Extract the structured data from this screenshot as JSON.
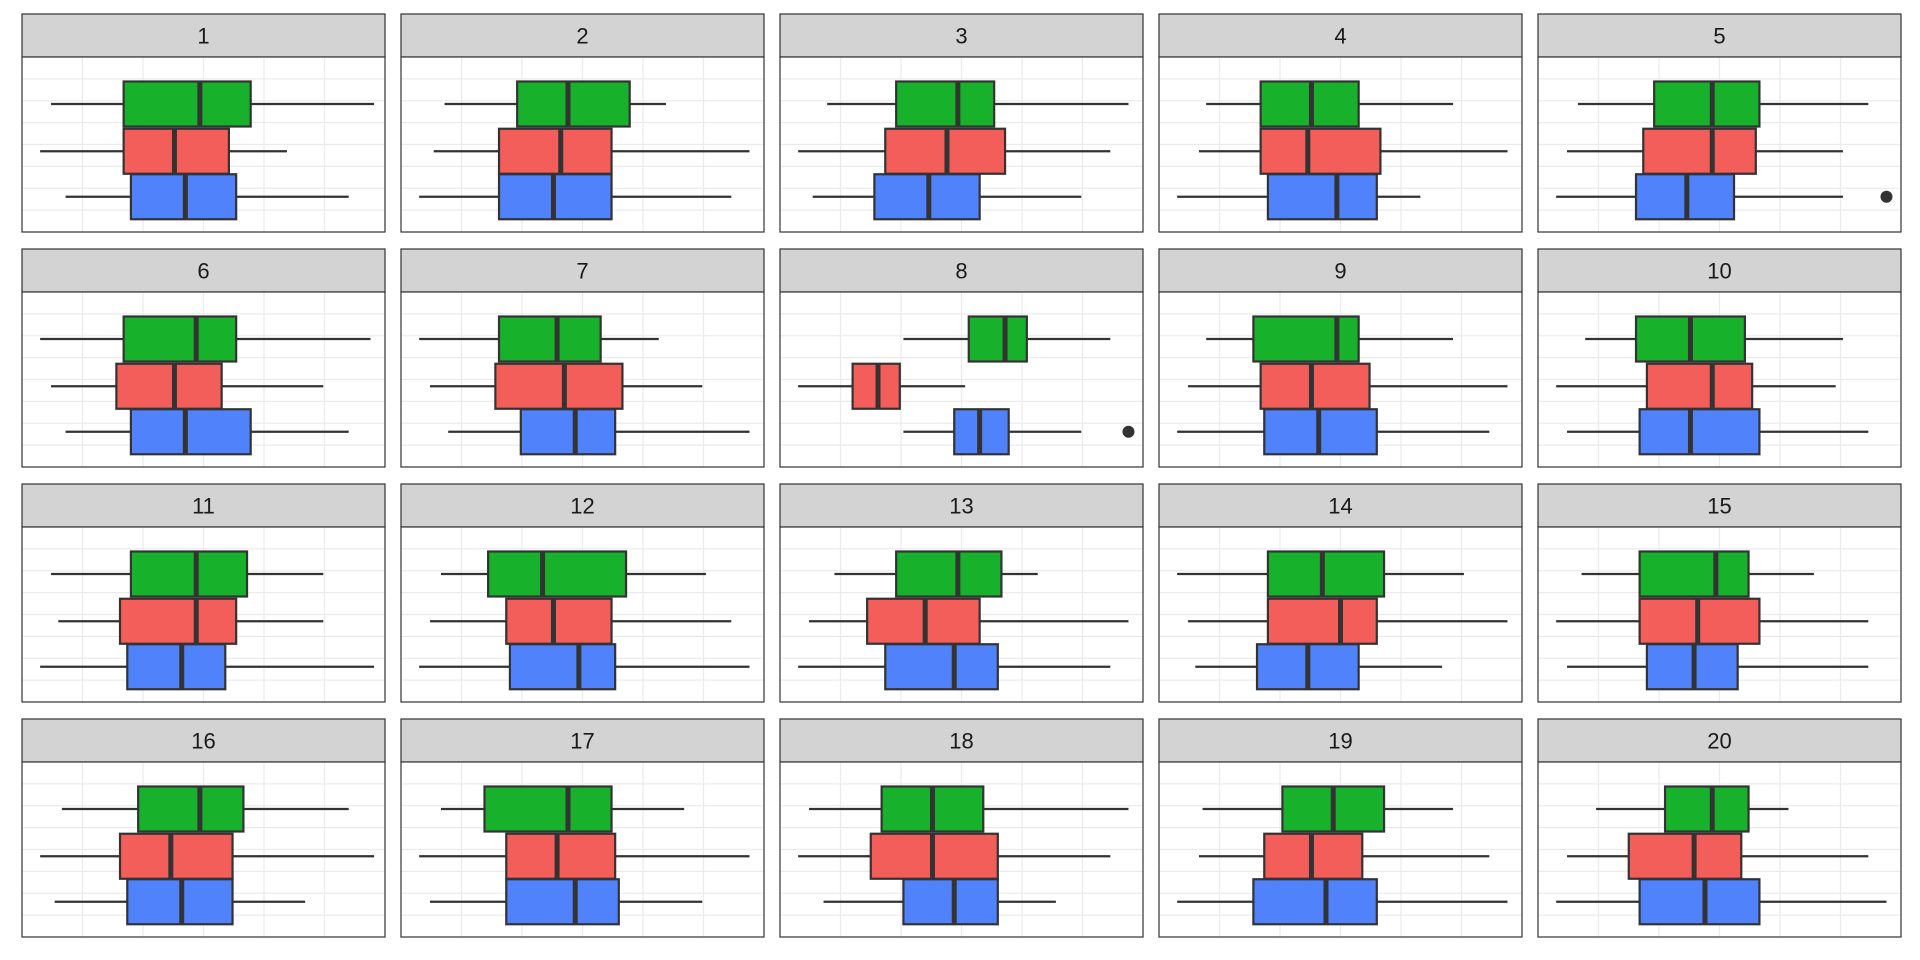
{
  "chart_data": {
    "type": "boxplot",
    "facet_layout": {
      "rows": 4,
      "cols": 5
    },
    "x_range": [
      0,
      100
    ],
    "grid": true,
    "legend": "none",
    "series_colors": {
      "top": "#17b12b",
      "middle": "#f35e5a",
      "bottom": "#5083fb"
    },
    "panels": [
      {
        "label": "1",
        "boxes": [
          {
            "group": "top",
            "whisker_low": 8,
            "q1": 28,
            "median": 49,
            "q3": 63,
            "whisker_high": 97,
            "outliers": []
          },
          {
            "group": "middle",
            "whisker_low": 5,
            "q1": 28,
            "median": 42,
            "q3": 57,
            "whisker_high": 73,
            "outliers": []
          },
          {
            "group": "bottom",
            "whisker_low": 12,
            "q1": 30,
            "median": 45,
            "q3": 59,
            "whisker_high": 90,
            "outliers": []
          }
        ]
      },
      {
        "label": "2",
        "boxes": [
          {
            "group": "top",
            "whisker_low": 12,
            "q1": 32,
            "median": 46,
            "q3": 63,
            "whisker_high": 73,
            "outliers": []
          },
          {
            "group": "middle",
            "whisker_low": 9,
            "q1": 27,
            "median": 44,
            "q3": 58,
            "whisker_high": 96,
            "outliers": []
          },
          {
            "group": "bottom",
            "whisker_low": 5,
            "q1": 27,
            "median": 42,
            "q3": 58,
            "whisker_high": 91,
            "outliers": []
          }
        ]
      },
      {
        "label": "3",
        "boxes": [
          {
            "group": "top",
            "whisker_low": 13,
            "q1": 32,
            "median": 49,
            "q3": 59,
            "whisker_high": 96,
            "outliers": []
          },
          {
            "group": "middle",
            "whisker_low": 5,
            "q1": 29,
            "median": 46,
            "q3": 62,
            "whisker_high": 91,
            "outliers": []
          },
          {
            "group": "bottom",
            "whisker_low": 9,
            "q1": 26,
            "median": 41,
            "q3": 55,
            "whisker_high": 83,
            "outliers": []
          }
        ]
      },
      {
        "label": "4",
        "boxes": [
          {
            "group": "top",
            "whisker_low": 13,
            "q1": 28,
            "median": 42,
            "q3": 55,
            "whisker_high": 81,
            "outliers": []
          },
          {
            "group": "middle",
            "whisker_low": 11,
            "q1": 28,
            "median": 41,
            "q3": 61,
            "whisker_high": 96,
            "outliers": []
          },
          {
            "group": "bottom",
            "whisker_low": 5,
            "q1": 30,
            "median": 49,
            "q3": 60,
            "whisker_high": 72,
            "outliers": []
          }
        ]
      },
      {
        "label": "5",
        "boxes": [
          {
            "group": "top",
            "whisker_low": 11,
            "q1": 32,
            "median": 48,
            "q3": 61,
            "whisker_high": 91,
            "outliers": []
          },
          {
            "group": "middle",
            "whisker_low": 8,
            "q1": 29,
            "median": 48,
            "q3": 60,
            "whisker_high": 84,
            "outliers": []
          },
          {
            "group": "bottom",
            "whisker_low": 5,
            "q1": 27,
            "median": 41,
            "q3": 54,
            "whisker_high": 84,
            "outliers": [
              96
            ]
          }
        ]
      },
      {
        "label": "6",
        "boxes": [
          {
            "group": "top",
            "whisker_low": 5,
            "q1": 28,
            "median": 48,
            "q3": 59,
            "whisker_high": 96,
            "outliers": []
          },
          {
            "group": "middle",
            "whisker_low": 8,
            "q1": 26,
            "median": 42,
            "q3": 55,
            "whisker_high": 83,
            "outliers": []
          },
          {
            "group": "bottom",
            "whisker_low": 12,
            "q1": 30,
            "median": 45,
            "q3": 63,
            "whisker_high": 90,
            "outliers": []
          }
        ]
      },
      {
        "label": "7",
        "boxes": [
          {
            "group": "top",
            "whisker_low": 5,
            "q1": 27,
            "median": 43,
            "q3": 55,
            "whisker_high": 71,
            "outliers": []
          },
          {
            "group": "middle",
            "whisker_low": 8,
            "q1": 26,
            "median": 45,
            "q3": 61,
            "whisker_high": 83,
            "outliers": []
          },
          {
            "group": "bottom",
            "whisker_low": 13,
            "q1": 33,
            "median": 48,
            "q3": 59,
            "whisker_high": 96,
            "outliers": []
          }
        ]
      },
      {
        "label": "8",
        "boxes": [
          {
            "group": "top",
            "whisker_low": 34,
            "q1": 52,
            "median": 62,
            "q3": 68,
            "whisker_high": 91,
            "outliers": []
          },
          {
            "group": "middle",
            "whisker_low": 5,
            "q1": 20,
            "median": 27,
            "q3": 33,
            "whisker_high": 51,
            "outliers": []
          },
          {
            "group": "bottom",
            "whisker_low": 34,
            "q1": 48,
            "median": 55,
            "q3": 63,
            "whisker_high": 83,
            "outliers": [
              96
            ]
          }
        ]
      },
      {
        "label": "9",
        "boxes": [
          {
            "group": "top",
            "whisker_low": 13,
            "q1": 26,
            "median": 49,
            "q3": 55,
            "whisker_high": 81,
            "outliers": []
          },
          {
            "group": "middle",
            "whisker_low": 8,
            "q1": 28,
            "median": 42,
            "q3": 58,
            "whisker_high": 96,
            "outliers": []
          },
          {
            "group": "bottom",
            "whisker_low": 5,
            "q1": 29,
            "median": 44,
            "q3": 60,
            "whisker_high": 91,
            "outliers": []
          }
        ]
      },
      {
        "label": "10",
        "boxes": [
          {
            "group": "top",
            "whisker_low": 13,
            "q1": 27,
            "median": 42,
            "q3": 57,
            "whisker_high": 84,
            "outliers": []
          },
          {
            "group": "middle",
            "whisker_low": 5,
            "q1": 30,
            "median": 48,
            "q3": 59,
            "whisker_high": 82,
            "outliers": []
          },
          {
            "group": "bottom",
            "whisker_low": 8,
            "q1": 28,
            "median": 42,
            "q3": 61,
            "whisker_high": 91,
            "outliers": []
          }
        ]
      },
      {
        "label": "11",
        "boxes": [
          {
            "group": "top",
            "whisker_low": 8,
            "q1": 30,
            "median": 48,
            "q3": 62,
            "whisker_high": 83,
            "outliers": []
          },
          {
            "group": "middle",
            "whisker_low": 10,
            "q1": 27,
            "median": 48,
            "q3": 59,
            "whisker_high": 83,
            "outliers": []
          },
          {
            "group": "bottom",
            "whisker_low": 5,
            "q1": 29,
            "median": 44,
            "q3": 56,
            "whisker_high": 97,
            "outliers": []
          }
        ]
      },
      {
        "label": "12",
        "boxes": [
          {
            "group": "top",
            "whisker_low": 11,
            "q1": 24,
            "median": 39,
            "q3": 62,
            "whisker_high": 84,
            "outliers": []
          },
          {
            "group": "middle",
            "whisker_low": 8,
            "q1": 29,
            "median": 42,
            "q3": 58,
            "whisker_high": 91,
            "outliers": []
          },
          {
            "group": "bottom",
            "whisker_low": 5,
            "q1": 30,
            "median": 49,
            "q3": 59,
            "whisker_high": 96,
            "outliers": []
          }
        ]
      },
      {
        "label": "13",
        "boxes": [
          {
            "group": "top",
            "whisker_low": 15,
            "q1": 32,
            "median": 49,
            "q3": 61,
            "whisker_high": 71,
            "outliers": []
          },
          {
            "group": "middle",
            "whisker_low": 8,
            "q1": 24,
            "median": 40,
            "q3": 55,
            "whisker_high": 96,
            "outliers": []
          },
          {
            "group": "bottom",
            "whisker_low": 5,
            "q1": 29,
            "median": 48,
            "q3": 60,
            "whisker_high": 91,
            "outliers": []
          }
        ]
      },
      {
        "label": "14",
        "boxes": [
          {
            "group": "top",
            "whisker_low": 5,
            "q1": 30,
            "median": 45,
            "q3": 62,
            "whisker_high": 84,
            "outliers": []
          },
          {
            "group": "middle",
            "whisker_low": 8,
            "q1": 30,
            "median": 50,
            "q3": 60,
            "whisker_high": 96,
            "outliers": []
          },
          {
            "group": "bottom",
            "whisker_low": 10,
            "q1": 27,
            "median": 41,
            "q3": 55,
            "whisker_high": 78,
            "outliers": []
          }
        ]
      },
      {
        "label": "15",
        "boxes": [
          {
            "group": "top",
            "whisker_low": 12,
            "q1": 28,
            "median": 49,
            "q3": 58,
            "whisker_high": 76,
            "outliers": []
          },
          {
            "group": "middle",
            "whisker_low": 5,
            "q1": 28,
            "median": 44,
            "q3": 61,
            "whisker_high": 91,
            "outliers": []
          },
          {
            "group": "bottom",
            "whisker_low": 8,
            "q1": 30,
            "median": 43,
            "q3": 55,
            "whisker_high": 91,
            "outliers": []
          }
        ]
      },
      {
        "label": "16",
        "boxes": [
          {
            "group": "top",
            "whisker_low": 11,
            "q1": 32,
            "median": 49,
            "q3": 61,
            "whisker_high": 90,
            "outliers": []
          },
          {
            "group": "middle",
            "whisker_low": 5,
            "q1": 27,
            "median": 41,
            "q3": 58,
            "whisker_high": 97,
            "outliers": []
          },
          {
            "group": "bottom",
            "whisker_low": 9,
            "q1": 29,
            "median": 44,
            "q3": 58,
            "whisker_high": 78,
            "outliers": []
          }
        ]
      },
      {
        "label": "17",
        "boxes": [
          {
            "group": "top",
            "whisker_low": 11,
            "q1": 23,
            "median": 46,
            "q3": 58,
            "whisker_high": 78,
            "outliers": []
          },
          {
            "group": "middle",
            "whisker_low": 5,
            "q1": 29,
            "median": 43,
            "q3": 59,
            "whisker_high": 96,
            "outliers": []
          },
          {
            "group": "bottom",
            "whisker_low": 8,
            "q1": 29,
            "median": 48,
            "q3": 60,
            "whisker_high": 83,
            "outliers": []
          }
        ]
      },
      {
        "label": "18",
        "boxes": [
          {
            "group": "top",
            "whisker_low": 8,
            "q1": 28,
            "median": 42,
            "q3": 56,
            "whisker_high": 96,
            "outliers": []
          },
          {
            "group": "middle",
            "whisker_low": 5,
            "q1": 25,
            "median": 42,
            "q3": 60,
            "whisker_high": 91,
            "outliers": []
          },
          {
            "group": "bottom",
            "whisker_low": 12,
            "q1": 34,
            "median": 48,
            "q3": 60,
            "whisker_high": 76,
            "outliers": []
          }
        ]
      },
      {
        "label": "19",
        "boxes": [
          {
            "group": "top",
            "whisker_low": 12,
            "q1": 34,
            "median": 48,
            "q3": 62,
            "whisker_high": 81,
            "outliers": []
          },
          {
            "group": "middle",
            "whisker_low": 11,
            "q1": 29,
            "median": 42,
            "q3": 56,
            "whisker_high": 91,
            "outliers": []
          },
          {
            "group": "bottom",
            "whisker_low": 5,
            "q1": 26,
            "median": 46,
            "q3": 60,
            "whisker_high": 96,
            "outliers": []
          }
        ]
      },
      {
        "label": "20",
        "boxes": [
          {
            "group": "top",
            "whisker_low": 16,
            "q1": 35,
            "median": 48,
            "q3": 58,
            "whisker_high": 69,
            "outliers": []
          },
          {
            "group": "middle",
            "whisker_low": 8,
            "q1": 25,
            "median": 43,
            "q3": 56,
            "whisker_high": 91,
            "outliers": []
          },
          {
            "group": "bottom",
            "whisker_low": 5,
            "q1": 28,
            "median": 46,
            "q3": 61,
            "whisker_high": 96,
            "outliers": []
          }
        ]
      }
    ]
  }
}
